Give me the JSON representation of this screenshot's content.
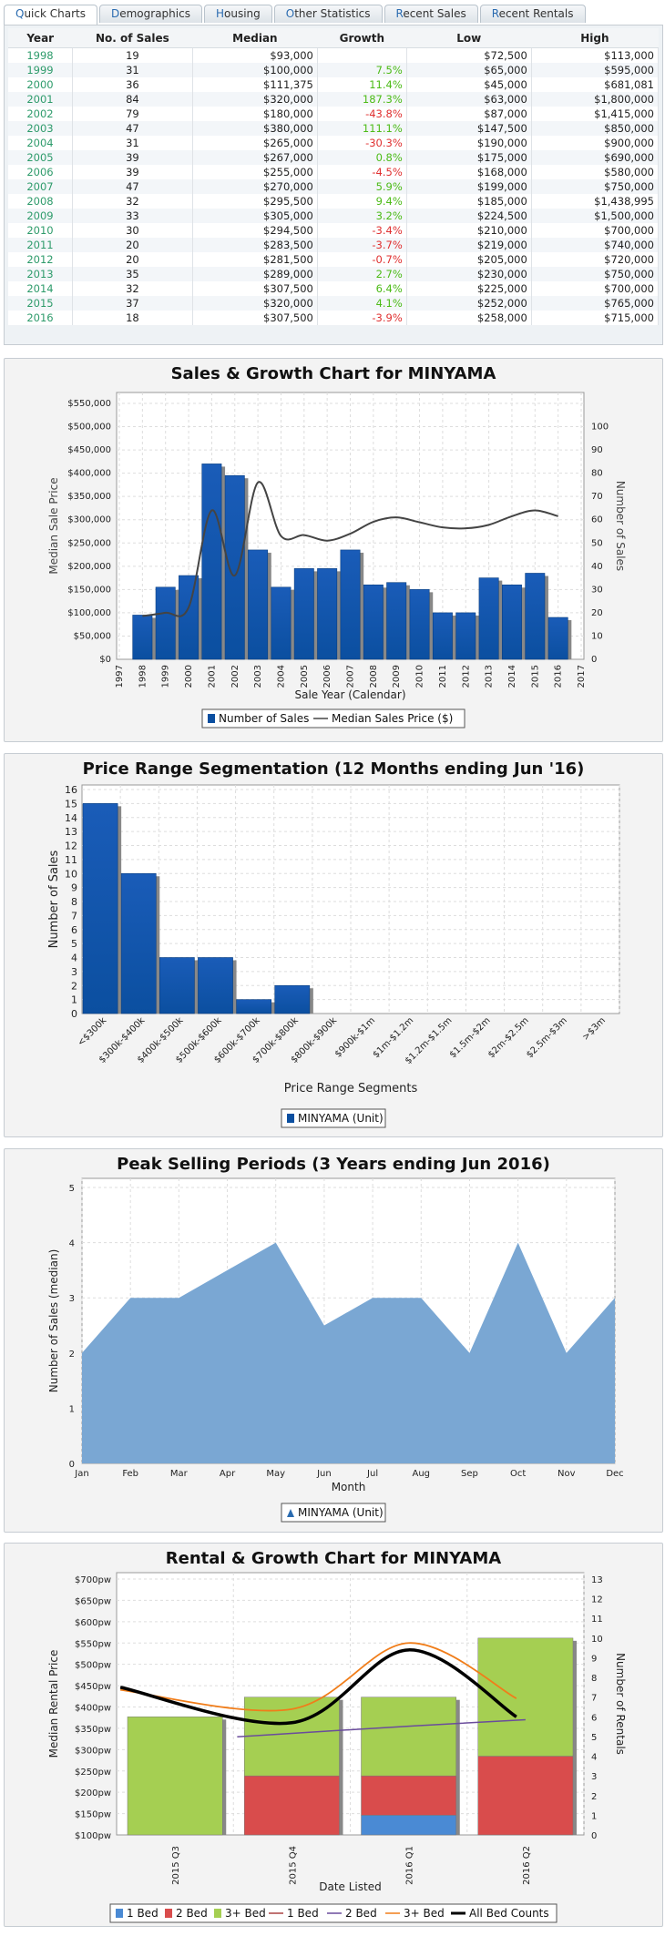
{
  "tabs": [
    {
      "first": "Q",
      "rest": "uick Charts"
    },
    {
      "first": "D",
      "rest": "emographics"
    },
    {
      "first": "H",
      "rest": "ousing"
    },
    {
      "first": "O",
      "rest": "ther Statistics"
    },
    {
      "first": "R",
      "rest": "ecent Sales"
    },
    {
      "first": "R",
      "rest": "ecent Rentals"
    }
  ],
  "sales_table": {
    "headers": [
      "Year",
      "No. of Sales",
      "Median",
      "Growth",
      "Low",
      "High"
    ],
    "rows": [
      [
        "1998",
        "19",
        "$93,000",
        "",
        "$72,500",
        "$113,000"
      ],
      [
        "1999",
        "31",
        "$100,000",
        "7.5%",
        "$65,000",
        "$595,000"
      ],
      [
        "2000",
        "36",
        "$111,375",
        "11.4%",
        "$45,000",
        "$681,081"
      ],
      [
        "2001",
        "84",
        "$320,000",
        "187.3%",
        "$63,000",
        "$1,800,000"
      ],
      [
        "2002",
        "79",
        "$180,000",
        "-43.8%",
        "$87,000",
        "$1,415,000"
      ],
      [
        "2003",
        "47",
        "$380,000",
        "111.1%",
        "$147,500",
        "$850,000"
      ],
      [
        "2004",
        "31",
        "$265,000",
        "-30.3%",
        "$190,000",
        "$900,000"
      ],
      [
        "2005",
        "39",
        "$267,000",
        "0.8%",
        "$175,000",
        "$690,000"
      ],
      [
        "2006",
        "39",
        "$255,000",
        "-4.5%",
        "$168,000",
        "$580,000"
      ],
      [
        "2007",
        "47",
        "$270,000",
        "5.9%",
        "$199,000",
        "$750,000"
      ],
      [
        "2008",
        "32",
        "$295,500",
        "9.4%",
        "$185,000",
        "$1,438,995"
      ],
      [
        "2009",
        "33",
        "$305,000",
        "3.2%",
        "$224,500",
        "$1,500,000"
      ],
      [
        "2010",
        "30",
        "$294,500",
        "-3.4%",
        "$210,000",
        "$700,000"
      ],
      [
        "2011",
        "20",
        "$283,500",
        "-3.7%",
        "$219,000",
        "$740,000"
      ],
      [
        "2012",
        "20",
        "$281,500",
        "-0.7%",
        "$205,000",
        "$720,000"
      ],
      [
        "2013",
        "35",
        "$289,000",
        "2.7%",
        "$230,000",
        "$750,000"
      ],
      [
        "2014",
        "32",
        "$307,500",
        "6.4%",
        "$225,000",
        "$700,000"
      ],
      [
        "2015",
        "37",
        "$320,000",
        "4.1%",
        "$252,000",
        "$765,000"
      ],
      [
        "2016",
        "18",
        "$307,500",
        "-3.9%",
        "$258,000",
        "$715,000"
      ]
    ]
  },
  "colors": {
    "bar_blue": "#0b4fa0",
    "median_line": "#444444",
    "area": "#7aa7d3",
    "rent_green": "#a5cf52",
    "rent_red": "#d94c4c",
    "rent_blue": "#4a8ad4",
    "orange": "#f07d1a",
    "purple": "#6a4c9c"
  },
  "chart_data": [
    {
      "type": "bar",
      "title": "Sales & Growth Chart for MINYAMA",
      "xlabel": "Sale Year (Calendar)",
      "ylabel": "Median Sale Price",
      "ylabel_right": "Number of Sales",
      "x_ticks": [
        "1997",
        "1998",
        "1999",
        "2000",
        "2001",
        "2002",
        "2003",
        "2004",
        "2005",
        "2006",
        "2007",
        "2008",
        "2009",
        "2010",
        "2011",
        "2012",
        "2013",
        "2014",
        "2015",
        "2016",
        "2017"
      ],
      "y_ticks": [
        "$0",
        "$50,000",
        "$100,000",
        "$150,000",
        "$200,000",
        "$250,000",
        "$300,000",
        "$350,000",
        "$400,000",
        "$450,000",
        "$500,000",
        "$550,000"
      ],
      "y2_ticks": [
        "0",
        "10",
        "20",
        "30",
        "40",
        "50",
        "60",
        "70",
        "80",
        "90",
        "100"
      ],
      "ylim": [
        0,
        550000
      ],
      "y2lim": [
        0,
        110
      ],
      "categories": [
        "1998",
        "1999",
        "2000",
        "2001",
        "2002",
        "2003",
        "2004",
        "2005",
        "2006",
        "2007",
        "2008",
        "2009",
        "2010",
        "2011",
        "2012",
        "2013",
        "2014",
        "2015",
        "2016"
      ],
      "series": [
        {
          "name": "Number of Sales",
          "axis": "right",
          "values": [
            19,
            31,
            36,
            84,
            79,
            47,
            31,
            39,
            39,
            47,
            32,
            33,
            30,
            20,
            20,
            35,
            32,
            37,
            18
          ]
        },
        {
          "name": "Median Sales Price ($)",
          "axis": "left",
          "values": [
            93000,
            100000,
            111375,
            320000,
            180000,
            380000,
            265000,
            267000,
            255000,
            270000,
            295500,
            305000,
            294500,
            283500,
            281500,
            289000,
            307500,
            320000,
            307500
          ]
        }
      ],
      "legend": "bottom"
    },
    {
      "type": "bar",
      "title": "Price Range Segmentation (12 Months ending Jun '16)",
      "xlabel": "Price Range Segments",
      "ylabel": "Number of Sales",
      "categories": [
        "<$300k",
        "$300k-$400k",
        "$400k-$500k",
        "$500k-$600k",
        "$600k-$700k",
        "$700k-$800k",
        "$800k-$900k",
        "$900k-$1m",
        "$1m-$1.2m",
        "$1.2m-$1.5m",
        "$1.5m-$2m",
        "$2m-$2.5m",
        "$2.5m-$3m",
        ">$3m"
      ],
      "y_ticks": [
        "0",
        "1",
        "2",
        "3",
        "4",
        "5",
        "6",
        "7",
        "8",
        "9",
        "10",
        "11",
        "12",
        "13",
        "14",
        "15",
        "16"
      ],
      "ylim": [
        0,
        16
      ],
      "series": [
        {
          "name": "MINYAMA (Unit)",
          "values": [
            15,
            10,
            4,
            4,
            1,
            2,
            0,
            0,
            0,
            0,
            0,
            0,
            0,
            0
          ]
        }
      ],
      "legend": "bottom"
    },
    {
      "type": "area",
      "title": "Peak Selling Periods (3 Years ending Jun 2016)",
      "xlabel": "Month",
      "ylabel": "Number of Sales (median)",
      "categories": [
        "Jan",
        "Feb",
        "Mar",
        "Apr",
        "May",
        "Jun",
        "Jul",
        "Aug",
        "Sep",
        "Oct",
        "Nov",
        "Dec"
      ],
      "y_ticks": [
        "0",
        "1",
        "2",
        "3",
        "4",
        "5"
      ],
      "ylim": [
        0,
        5
      ],
      "series": [
        {
          "name": "MINYAMA (Unit)",
          "values": [
            2,
            3,
            3,
            3.5,
            4,
            2.5,
            3,
            3,
            2,
            4,
            2,
            3
          ]
        }
      ],
      "legend": "bottom"
    },
    {
      "type": "bar",
      "title": "Rental & Growth Chart for MINYAMA",
      "xlabel": "Date Listed",
      "ylabel": "Median Rental Price",
      "ylabel_right": "Number of Rentals",
      "categories": [
        "2015 Q3",
        "2015 Q4",
        "2016 Q1",
        "2016 Q2"
      ],
      "y_ticks": [
        "$100pw",
        "$150pw",
        "$200pw",
        "$250pw",
        "$300pw",
        "$350pw",
        "$400pw",
        "$450pw",
        "$500pw",
        "$550pw",
        "$600pw",
        "$650pw",
        "$700pw"
      ],
      "y2_ticks": [
        "0",
        "1",
        "2",
        "3",
        "4",
        "5",
        "6",
        "7",
        "8",
        "9",
        "10",
        "11",
        "12",
        "13"
      ],
      "ylim": [
        100,
        700
      ],
      "y2lim": [
        0,
        13
      ],
      "stacked_series": [
        {
          "name": "1 Bed",
          "values": [
            0,
            0,
            1,
            0
          ]
        },
        {
          "name": "2 Bed",
          "values": [
            0,
            3,
            2,
            4
          ]
        },
        {
          "name": "3+ Bed",
          "values": [
            6,
            4,
            4,
            6
          ]
        }
      ],
      "line_series": [
        {
          "name": "1 Bed",
          "values": [
            null,
            null,
            null,
            null
          ]
        },
        {
          "name": "2 Bed",
          "values": [
            null,
            330,
            355,
            370
          ]
        },
        {
          "name": "3+ Bed",
          "values": [
            440,
            395,
            550,
            420
          ]
        },
        {
          "name": "All Bed Counts",
          "values": [
            7.5,
            5.7,
            9.4,
            6
          ]
        }
      ],
      "legend": "bottom"
    }
  ]
}
